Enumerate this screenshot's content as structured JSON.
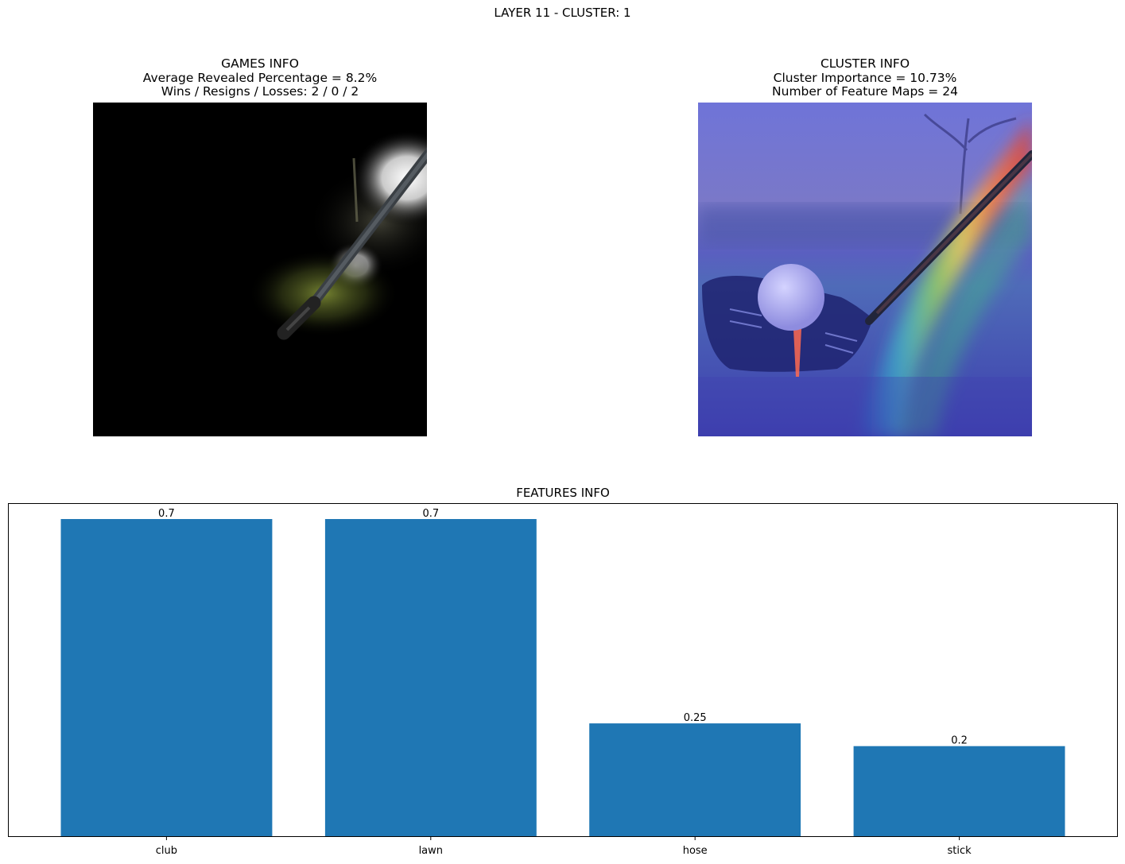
{
  "figure": {
    "suptitle": "LAYER 11 - CLUSTER: 1"
  },
  "games_panel": {
    "title_lines": [
      "GAMES INFO",
      "Average Revealed Percentage = 8.2%",
      "Wins / Resigns / Losses: 2 / 0 / 2"
    ]
  },
  "cluster_panel": {
    "title_lines": [
      "CLUSTER INFO",
      "Cluster Importance = 10.73%",
      "Number of Feature Maps = 24"
    ]
  },
  "chart_data": {
    "type": "bar",
    "title": "FEATURES INFO",
    "categories": [
      "club",
      "lawn",
      "hose",
      "stick"
    ],
    "values": [
      0.7,
      0.7,
      0.25,
      0.2
    ],
    "value_labels": [
      "0.7",
      "0.7",
      "0.25",
      "0.2"
    ],
    "ylim": [
      0,
      0.735
    ],
    "y_ticks_shown": false,
    "grid": false,
    "bar_color": "#1f77b4"
  }
}
